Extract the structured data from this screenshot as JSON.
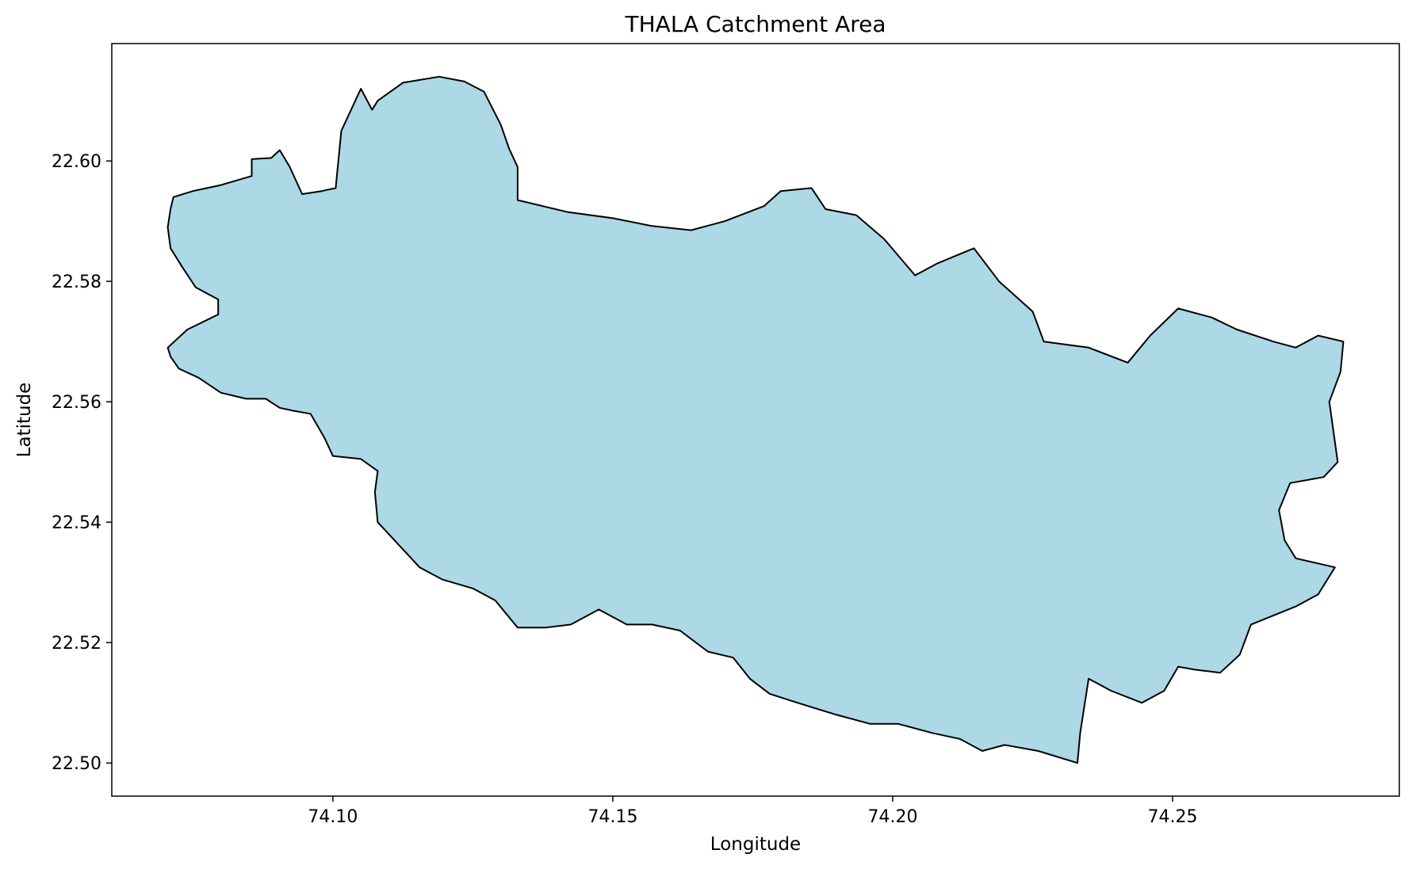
{
  "chart_data": {
    "type": "map",
    "title": "THALA Catchment Area",
    "xlabel": "Longitude",
    "ylabel": "Latitude",
    "xlim": [
      74.0605,
      74.2905
    ],
    "ylim": [
      22.4945,
      22.6195
    ],
    "x_ticks": [
      74.1,
      74.15,
      74.2,
      74.25
    ],
    "x_tick_labels": [
      "74.10",
      "74.15",
      "74.20",
      "74.25"
    ],
    "y_ticks": [
      22.5,
      22.52,
      22.54,
      22.56,
      22.58,
      22.6
    ],
    "y_tick_labels": [
      "22.50",
      "22.52",
      "22.54",
      "22.56",
      "22.58",
      "22.60"
    ],
    "grid": false,
    "fill_color": "#add8e6",
    "edge_color": "#000000",
    "boundary": [
      [
        74.0715,
        22.594
      ],
      [
        74.075,
        22.595
      ],
      [
        74.08,
        22.596
      ],
      [
        74.0855,
        22.5975
      ],
      [
        74.0855,
        22.6003
      ],
      [
        74.089,
        22.6005
      ],
      [
        74.0905,
        22.6018
      ],
      [
        74.0923,
        22.599
      ],
      [
        74.0945,
        22.5945
      ],
      [
        74.098,
        22.595
      ],
      [
        74.1005,
        22.5955
      ],
      [
        74.1015,
        22.605
      ],
      [
        74.105,
        22.612
      ],
      [
        74.107,
        22.6085
      ],
      [
        74.108,
        22.61
      ],
      [
        74.1125,
        22.613
      ],
      [
        74.119,
        22.614
      ],
      [
        74.1235,
        22.6132
      ],
      [
        74.127,
        22.6115
      ],
      [
        74.13,
        22.606
      ],
      [
        74.1315,
        22.602
      ],
      [
        74.133,
        22.599
      ],
      [
        74.133,
        22.5935
      ],
      [
        74.142,
        22.5915
      ],
      [
        74.15,
        22.5905
      ],
      [
        74.157,
        22.5892
      ],
      [
        74.164,
        22.5885
      ],
      [
        74.17,
        22.59
      ],
      [
        74.177,
        22.5925
      ],
      [
        74.18,
        22.595
      ],
      [
        74.1855,
        22.5955
      ],
      [
        74.188,
        22.592
      ],
      [
        74.1935,
        22.591
      ],
      [
        74.1985,
        22.587
      ],
      [
        74.204,
        22.581
      ],
      [
        74.208,
        22.583
      ],
      [
        74.2145,
        22.5855
      ],
      [
        74.219,
        22.58
      ],
      [
        74.225,
        22.575
      ],
      [
        74.227,
        22.57
      ],
      [
        74.235,
        22.569
      ],
      [
        74.242,
        22.5665
      ],
      [
        74.246,
        22.571
      ],
      [
        74.251,
        22.5755
      ],
      [
        74.257,
        22.574
      ],
      [
        74.2615,
        22.572
      ],
      [
        74.268,
        22.57
      ],
      [
        74.272,
        22.569
      ],
      [
        74.276,
        22.571
      ],
      [
        74.2805,
        22.57
      ],
      [
        74.28,
        22.565
      ],
      [
        74.278,
        22.56
      ],
      [
        74.2795,
        22.55
      ],
      [
        74.277,
        22.5475
      ],
      [
        74.271,
        22.5465
      ],
      [
        74.269,
        22.542
      ],
      [
        74.27,
        22.537
      ],
      [
        74.272,
        22.534
      ],
      [
        74.279,
        22.5325
      ],
      [
        74.276,
        22.528
      ],
      [
        74.272,
        22.526
      ],
      [
        74.264,
        22.523
      ],
      [
        74.262,
        22.518
      ],
      [
        74.2585,
        22.515
      ],
      [
        74.254,
        22.5155
      ],
      [
        74.251,
        22.516
      ],
      [
        74.2485,
        22.512
      ],
      [
        74.2445,
        22.51
      ],
      [
        74.239,
        22.512
      ],
      [
        74.235,
        22.514
      ],
      [
        74.2335,
        22.505
      ],
      [
        74.233,
        22.5
      ],
      [
        74.226,
        22.502
      ],
      [
        74.22,
        22.503
      ],
      [
        74.216,
        22.502
      ],
      [
        74.212,
        22.504
      ],
      [
        74.207,
        22.505
      ],
      [
        74.201,
        22.5065
      ],
      [
        74.196,
        22.5065
      ],
      [
        74.19,
        22.508
      ],
      [
        74.183,
        22.51
      ],
      [
        74.178,
        22.5115
      ],
      [
        74.1745,
        22.514
      ],
      [
        74.1715,
        22.5175
      ],
      [
        74.167,
        22.5185
      ],
      [
        74.162,
        22.522
      ],
      [
        74.157,
        22.523
      ],
      [
        74.1525,
        22.523
      ],
      [
        74.1475,
        22.5255
      ],
      [
        74.1425,
        22.523
      ],
      [
        74.138,
        22.5225
      ],
      [
        74.133,
        22.5225
      ],
      [
        74.129,
        22.527
      ],
      [
        74.125,
        22.529
      ],
      [
        74.1195,
        22.5305
      ],
      [
        74.1155,
        22.5325
      ],
      [
        74.1115,
        22.5365
      ],
      [
        74.108,
        22.54
      ],
      [
        74.1075,
        22.545
      ],
      [
        74.108,
        22.5485
      ],
      [
        74.105,
        22.5505
      ],
      [
        74.1,
        22.551
      ],
      [
        74.0985,
        22.554
      ],
      [
        74.096,
        22.558
      ],
      [
        74.093,
        22.5585
      ],
      [
        74.0905,
        22.559
      ],
      [
        74.088,
        22.5605
      ],
      [
        74.0845,
        22.5605
      ],
      [
        74.08,
        22.5615
      ],
      [
        74.076,
        22.564
      ],
      [
        74.0725,
        22.5655
      ],
      [
        74.071,
        22.5675
      ],
      [
        74.0705,
        22.569
      ],
      [
        74.074,
        22.572
      ],
      [
        74.0795,
        22.5745
      ],
      [
        74.0795,
        22.577
      ],
      [
        74.0755,
        22.579
      ],
      [
        74.073,
        22.5825
      ],
      [
        74.071,
        22.5855
      ],
      [
        74.0705,
        22.589
      ],
      [
        74.071,
        22.592
      ],
      [
        74.0715,
        22.594
      ]
    ]
  }
}
